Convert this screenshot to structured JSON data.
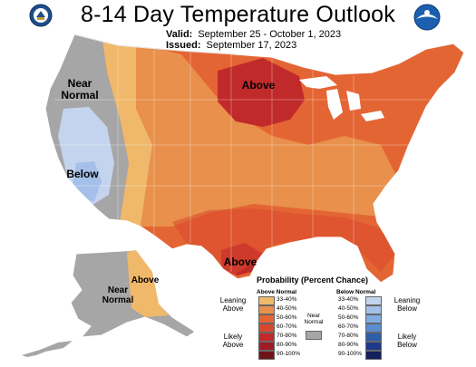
{
  "header": {
    "title": "8-14 Day Temperature Outlook",
    "valid_label": "Valid:",
    "valid_value": "September 25 - October 1, 2023",
    "issued_label": "Issued:",
    "issued_value": "September 17, 2023"
  },
  "map_labels": {
    "near_normal_west": "Near Normal",
    "below_west": "Below",
    "above_north": "Above",
    "above_texas": "Above",
    "above_alaska": "Above",
    "near_normal_alaska": "Near Normal"
  },
  "legend": {
    "title": "Probability (Percent Chance)",
    "above_header": "Above Normal",
    "below_header": "Below Normal",
    "leaning_above": "Leaning Above",
    "likely_above": "Likely Above",
    "leaning_below": "Leaning Below",
    "likely_below": "Likely Below",
    "near_normal": "Near Normal",
    "ranges": [
      "33-40%",
      "40-50%",
      "50-60%",
      "60-70%",
      "70-80%",
      "80-90%",
      "90-100%"
    ],
    "above_colors": [
      "#f0b86a",
      "#e8904c",
      "#e46534",
      "#d8482e",
      "#c02a2a",
      "#9c1e24",
      "#6e1418"
    ],
    "below_colors": [
      "#c4d4ee",
      "#a4c0e8",
      "#80ace0",
      "#5a8cd0",
      "#2e5ea8",
      "#203a8a",
      "#141f5c"
    ],
    "near_normal_color": "#a6a6a6"
  }
}
